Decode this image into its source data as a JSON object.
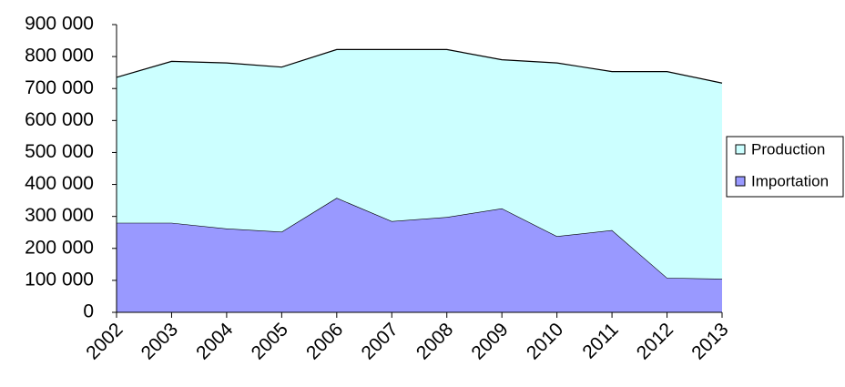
{
  "chart_data": {
    "type": "area",
    "stacked": true,
    "title": "",
    "xlabel": "",
    "ylabel": "",
    "categories": [
      "2002",
      "2003",
      "2004",
      "2005",
      "2006",
      "2007",
      "2008",
      "2009",
      "2010",
      "2011",
      "2012",
      "2013"
    ],
    "ylim": [
      0,
      900000
    ],
    "yticks": [
      "0",
      "100 000",
      "200 000",
      "300 000",
      "400 000",
      "500 000",
      "600 000",
      "700 000",
      "800 000",
      "900 000"
    ],
    "yticks_values": [
      0,
      100000,
      200000,
      300000,
      400000,
      500000,
      600000,
      700000,
      800000,
      900000
    ],
    "grid": false,
    "legend_position": "right",
    "series": [
      {
        "name": "Importation",
        "color": "#9999ff",
        "values": [
          280000,
          280000,
          262000,
          252000,
          358000,
          285000,
          298000,
          325000,
          238000,
          257000,
          108000,
          105000
        ]
      },
      {
        "name": "Production",
        "color": "#ccffff",
        "values": [
          455000,
          505000,
          518000,
          515000,
          464000,
          537000,
          524000,
          465000,
          542000,
          496000,
          645000,
          612000
        ]
      }
    ],
    "legend": [
      {
        "label": "Production",
        "color": "#ccffff"
      },
      {
        "label": "Importation",
        "color": "#9999ff"
      }
    ]
  }
}
